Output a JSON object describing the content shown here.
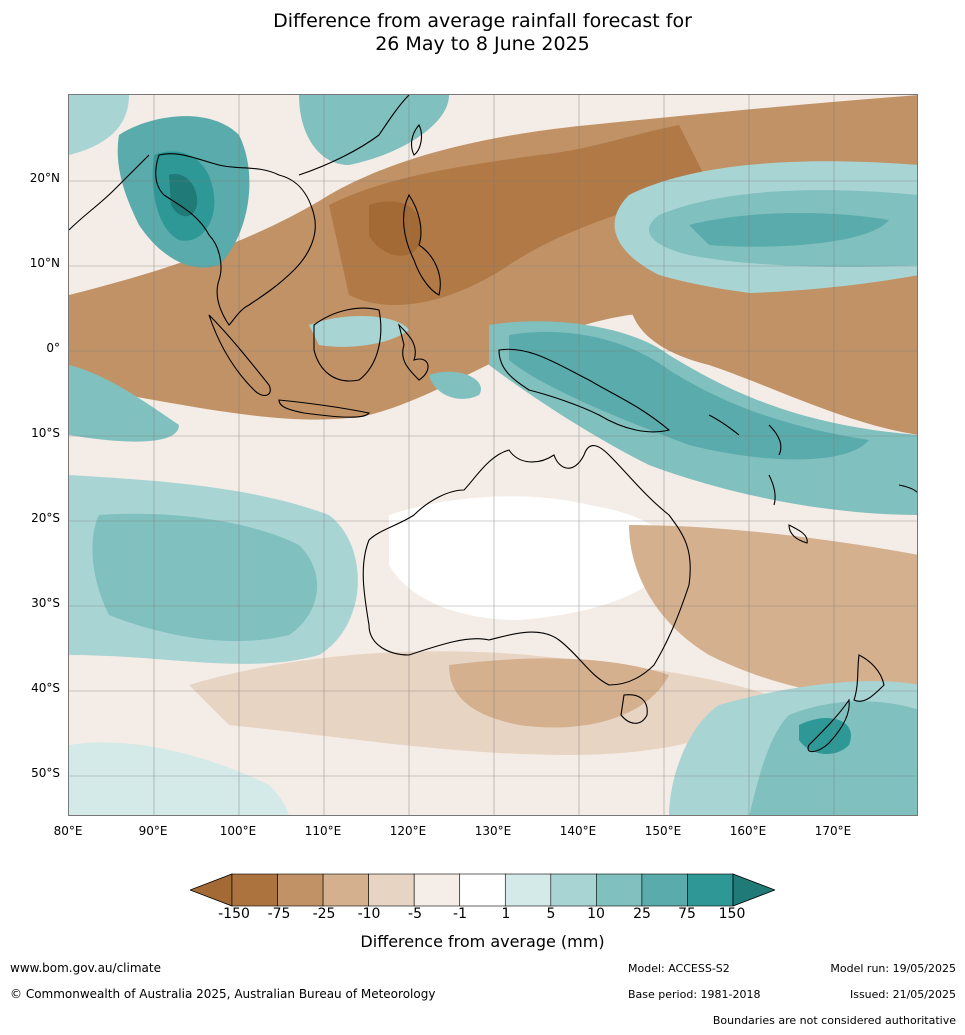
{
  "title": {
    "line1": "Difference from average rainfall forecast for",
    "line2": "26 May to 8 June 2025"
  },
  "axes": {
    "lat_labels": [
      "20°N",
      "10°N",
      "0°",
      "10°S",
      "20°S",
      "30°S",
      "40°S",
      "50°S"
    ],
    "lon_labels": [
      "80°E",
      "90°E",
      "100°E",
      "110°E",
      "120°E",
      "130°E",
      "140°E",
      "150°E",
      "160°E",
      "170°E"
    ]
  },
  "colorbar": {
    "title": "Difference from average (mm)",
    "ticks": [
      "-150",
      "-75",
      "-25",
      "-10",
      "-5",
      "-1",
      "1",
      "5",
      "10",
      "25",
      "75",
      "150"
    ],
    "colors": [
      "#a46a35",
      "#ad733f",
      "#c19265",
      "#d4b08f",
      "#e8d4c3",
      "#f5ede8",
      "#ffffff",
      "#d4eae9",
      "#a8d5d4",
      "#80c0bf",
      "#5aabab",
      "#2e9896",
      "#1f7a78"
    ]
  },
  "footer": {
    "website": "www.bom.gov.au/climate",
    "copyright": "© Commonwealth of Australia 2025, Australian Bureau of Meteorology",
    "model": "Model: ACCESS-S2",
    "base_period": "Base period: 1981-2018",
    "model_run": "Model run: 19/05/2025",
    "issued": "Issued: 21/05/2025",
    "disclaimer": "Boundaries are not considered authoritative"
  }
}
